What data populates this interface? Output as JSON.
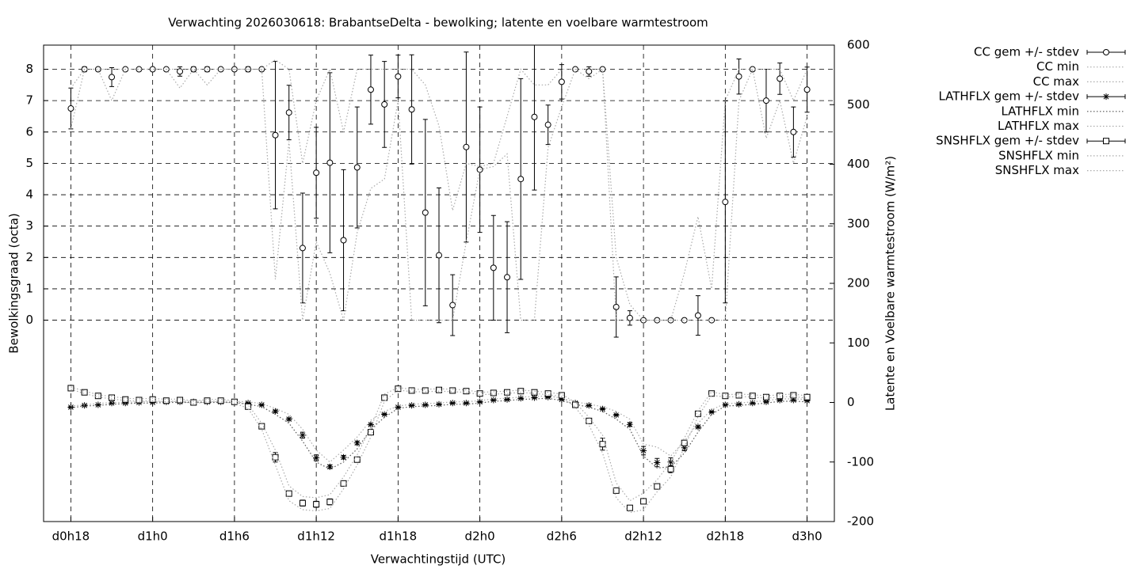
{
  "chart_data": {
    "type": "errorbar_line",
    "title": "Verwachting 2026030618: BrabantseDelta - bewolking; latente en voelbare warmtestroom",
    "x_label": "Verwachtingstijd (UTC)",
    "y_label": "Bewolkingsgraad (octa)",
    "y2_label": "Latente en Voelbare warmtestroom (W/m²)",
    "x": [
      0,
      1,
      2,
      3,
      4,
      5,
      6,
      7,
      8,
      9,
      10,
      11,
      12,
      13,
      14,
      15,
      16,
      17,
      18,
      19,
      20,
      21,
      22,
      23,
      24,
      25,
      26,
      27,
      28,
      29,
      30,
      31,
      32,
      33,
      34,
      35,
      36,
      37,
      38,
      39,
      40,
      41,
      42,
      43,
      44,
      45,
      46,
      47,
      48,
      49,
      50,
      51,
      52,
      53,
      54
    ],
    "xlim": [
      -2,
      56
    ],
    "xticks": [
      {
        "value": 0,
        "label": "d0h18"
      },
      {
        "value": 6,
        "label": "d1h0"
      },
      {
        "value": 12,
        "label": "d1h6"
      },
      {
        "value": 18,
        "label": "d1h12"
      },
      {
        "value": 24,
        "label": "d1h18"
      },
      {
        "value": 30,
        "label": "d2h0"
      },
      {
        "value": 36,
        "label": "d2h6"
      },
      {
        "value": 42,
        "label": "d2h12"
      },
      {
        "value": 48,
        "label": "d2h18"
      },
      {
        "value": 54,
        "label": "d3h0"
      }
    ],
    "ylim": [
      -6.42,
      8.77
    ],
    "yticks": [
      0,
      1,
      2,
      3,
      4,
      5,
      6,
      7,
      8
    ],
    "y2lim": [
      -200,
      600
    ],
    "y2ticks": [
      -200,
      -100,
      0,
      100,
      200,
      300,
      400,
      500,
      600
    ],
    "grid": true,
    "legend": "outside-right",
    "series": [
      {
        "name": "CC gem +/- stdev",
        "color": "#000000",
        "style": "errorbars",
        "marker": "circle",
        "values": [
          6.75,
          8,
          8,
          7.75,
          8,
          8,
          8,
          8,
          7.93,
          8,
          8,
          8,
          8,
          8,
          8,
          5.9,
          6.62,
          2.3,
          4.7,
          5.02,
          2.55,
          4.87,
          7.35,
          6.88,
          7.77,
          6.72,
          3.43,
          2.07,
          0.48,
          5.52,
          4.8,
          1.67,
          1.37,
          4.5,
          6.48,
          6.23,
          7.6,
          8,
          7.93,
          8,
          0.42,
          0.07,
          0,
          0,
          0,
          0,
          0.15,
          0,
          3.77,
          7.77,
          8,
          7,
          7.7,
          6,
          7.35
        ],
        "errors": [
          0.65,
          0.08,
          0,
          0.3,
          0,
          0,
          0,
          0,
          0.15,
          0.08,
          0.08,
          0,
          0,
          0.08,
          0,
          2.35,
          0.87,
          1.75,
          1.45,
          2.87,
          2.25,
          1.93,
          1.1,
          1.37,
          0.68,
          1.74,
          2.97,
          2.15,
          0.97,
          3.03,
          2,
          1.67,
          1.77,
          3.2,
          2.33,
          0.63,
          0.55,
          0,
          0.15,
          0,
          0.96,
          0.23,
          0,
          0,
          0,
          0,
          0.63,
          0,
          3.22,
          0.56,
          0,
          1,
          0.5,
          0.8,
          0.72
        ]
      },
      {
        "name": "CC min",
        "color": "#aaaaaa",
        "style": "dotted",
        "values": [
          6.1,
          8,
          8,
          7,
          8,
          8,
          8,
          8,
          7.4,
          8,
          7.5,
          8,
          8,
          8,
          8,
          1.3,
          5.7,
          0,
          2.5,
          1.5,
          0,
          2.8,
          4.2,
          4.5,
          7,
          0,
          0,
          0,
          0,
          2.5,
          4.8,
          4.9,
          5.3,
          0,
          0,
          5.5,
          6.8,
          8,
          7.7,
          8,
          0,
          0,
          0,
          0,
          0,
          0,
          0,
          0,
          0,
          7,
          8,
          5.8,
          7,
          5,
          6.5
        ]
      },
      {
        "name": "CC max",
        "color": "#aaaaaa",
        "style": "dotted",
        "values": [
          7.4,
          8,
          8,
          8,
          8,
          8,
          8,
          8,
          8,
          8,
          8,
          8,
          8,
          8,
          8,
          8.3,
          8,
          5,
          7,
          8,
          6,
          8,
          8,
          8,
          8,
          8,
          7.5,
          6.2,
          3.5,
          5,
          4.9,
          5,
          6.5,
          8,
          7.5,
          7.5,
          8,
          8,
          8,
          8,
          2,
          0.5,
          0,
          0,
          0,
          1.5,
          3.3,
          1,
          7,
          8,
          8,
          8,
          8,
          7,
          8
        ]
      },
      {
        "name": "LATHFLX gem +/- stdev",
        "color": "#000000",
        "style": "errorbars",
        "marker": "star",
        "axis": "y2",
        "values": [
          -8,
          -5,
          -4,
          -1,
          -1,
          0,
          0,
          1,
          1,
          1,
          1,
          1,
          1,
          -1,
          -4,
          -15,
          -28,
          -55,
          -93,
          -108,
          -92,
          -68,
          -37,
          -20,
          -8,
          -5,
          -4,
          -3,
          -1,
          -1,
          1,
          4,
          5,
          7,
          8,
          9,
          5,
          -1,
          -5,
          -11,
          -21,
          -37,
          -81,
          -101,
          -100,
          -76,
          -41,
          -16,
          -4,
          -3,
          -1,
          1,
          4,
          4,
          3
        ],
        "errors": [
          1,
          1,
          1,
          1,
          1,
          1,
          1,
          1,
          1,
          1,
          1,
          1,
          1,
          1,
          1,
          2,
          2,
          5,
          5,
          3,
          3,
          3,
          2,
          1,
          1,
          1,
          1,
          1,
          1,
          1,
          1,
          1,
          1,
          1,
          1,
          1,
          1,
          1,
          1,
          1,
          1,
          3,
          7,
          7,
          7,
          5,
          2,
          1,
          1,
          1,
          1,
          1,
          1,
          1,
          1
        ]
      },
      {
        "name": "LATHFLX min",
        "color": "#555555",
        "style": "dotted",
        "axis": "y2",
        "values": [
          -9,
          -6,
          -5,
          -3,
          -2,
          -1,
          -1,
          0,
          0,
          0,
          0,
          0,
          0,
          -3,
          -7,
          -20,
          -35,
          -65,
          -100,
          -112,
          -100,
          -78,
          -45,
          -25,
          -10,
          -7,
          -6,
          -5,
          -3,
          -3,
          -1,
          2,
          3,
          5,
          6,
          7,
          3,
          -3,
          -8,
          -15,
          -28,
          -45,
          -90,
          -110,
          -108,
          -85,
          -50,
          -20,
          -6,
          -5,
          -3,
          -1,
          2,
          2,
          1
        ]
      },
      {
        "name": "LATHFLX max",
        "color": "#aaaaaa",
        "style": "dotted",
        "axis": "y2",
        "values": [
          -6,
          -4,
          -2,
          0,
          0,
          1,
          1,
          2,
          2,
          2,
          2,
          2,
          2,
          1,
          -2,
          -10,
          -20,
          -45,
          -80,
          -100,
          -80,
          -58,
          -30,
          -15,
          -6,
          -3,
          -2,
          -1,
          1,
          1,
          3,
          6,
          7,
          9,
          10,
          11,
          7,
          1,
          -3,
          -7,
          -15,
          -28,
          -70,
          -75,
          -90,
          -65,
          -35,
          -12,
          -2,
          -1,
          1,
          3,
          6,
          6,
          5
        ]
      },
      {
        "name": "SNSHFLX gem +/- stdev",
        "color": "#000000",
        "style": "errorbars",
        "marker": "square",
        "axis": "y2",
        "values": [
          24,
          17,
          11,
          8,
          5,
          4,
          5,
          3,
          4,
          0,
          3,
          3,
          1,
          -7,
          -40,
          -92,
          -153,
          -169,
          -171,
          -167,
          -136,
          -96,
          -50,
          8,
          23,
          20,
          20,
          21,
          20,
          19,
          15,
          16,
          17,
          19,
          17,
          15,
          12,
          -4,
          -31,
          -70,
          -148,
          -177,
          -166,
          -141,
          -112,
          -68,
          -19,
          15,
          11,
          12,
          11,
          9,
          11,
          12,
          9
        ],
        "errors": [
          1,
          1,
          1,
          1,
          1,
          1,
          1,
          1,
          1,
          1,
          1,
          1,
          1,
          1,
          2,
          8,
          3,
          5,
          5,
          5,
          3,
          3,
          2,
          1,
          1,
          1,
          1,
          1,
          1,
          1,
          1,
          1,
          1,
          1,
          1,
          1,
          1,
          2,
          4,
          10,
          3,
          2,
          3,
          4,
          6,
          4,
          2,
          1,
          1,
          1,
          1,
          1,
          1,
          1,
          1
        ]
      },
      {
        "name": "SNSHFLX min",
        "color": "#aaaaaa",
        "style": "dotted",
        "axis": "y2",
        "values": [
          22,
          15,
          9,
          6,
          3,
          2,
          3,
          1,
          2,
          -2,
          1,
          1,
          -1,
          -10,
          -45,
          -105,
          -165,
          -180,
          -182,
          -178,
          -145,
          -105,
          -58,
          2,
          21,
          18,
          18,
          19,
          18,
          17,
          13,
          14,
          15,
          17,
          15,
          13,
          10,
          -8,
          -38,
          -85,
          -160,
          -185,
          -180,
          -150,
          -125,
          -75,
          -24,
          12,
          9,
          10,
          9,
          7,
          9,
          10,
          7
        ]
      },
      {
        "name": "SNSHFLX max",
        "color": "#aaaaaa",
        "style": "dotted",
        "axis": "y2",
        "values": [
          26,
          19,
          13,
          10,
          7,
          6,
          7,
          5,
          6,
          2,
          5,
          5,
          3,
          -4,
          -35,
          -80,
          -140,
          -158,
          -160,
          -155,
          -125,
          -88,
          -42,
          14,
          25,
          22,
          22,
          23,
          22,
          21,
          17,
          18,
          19,
          21,
          19,
          17,
          14,
          0,
          -25,
          -55,
          -135,
          -165,
          -152,
          -130,
          -100,
          -60,
          -14,
          18,
          13,
          14,
          13,
          11,
          13,
          14,
          11
        ]
      }
    ]
  }
}
